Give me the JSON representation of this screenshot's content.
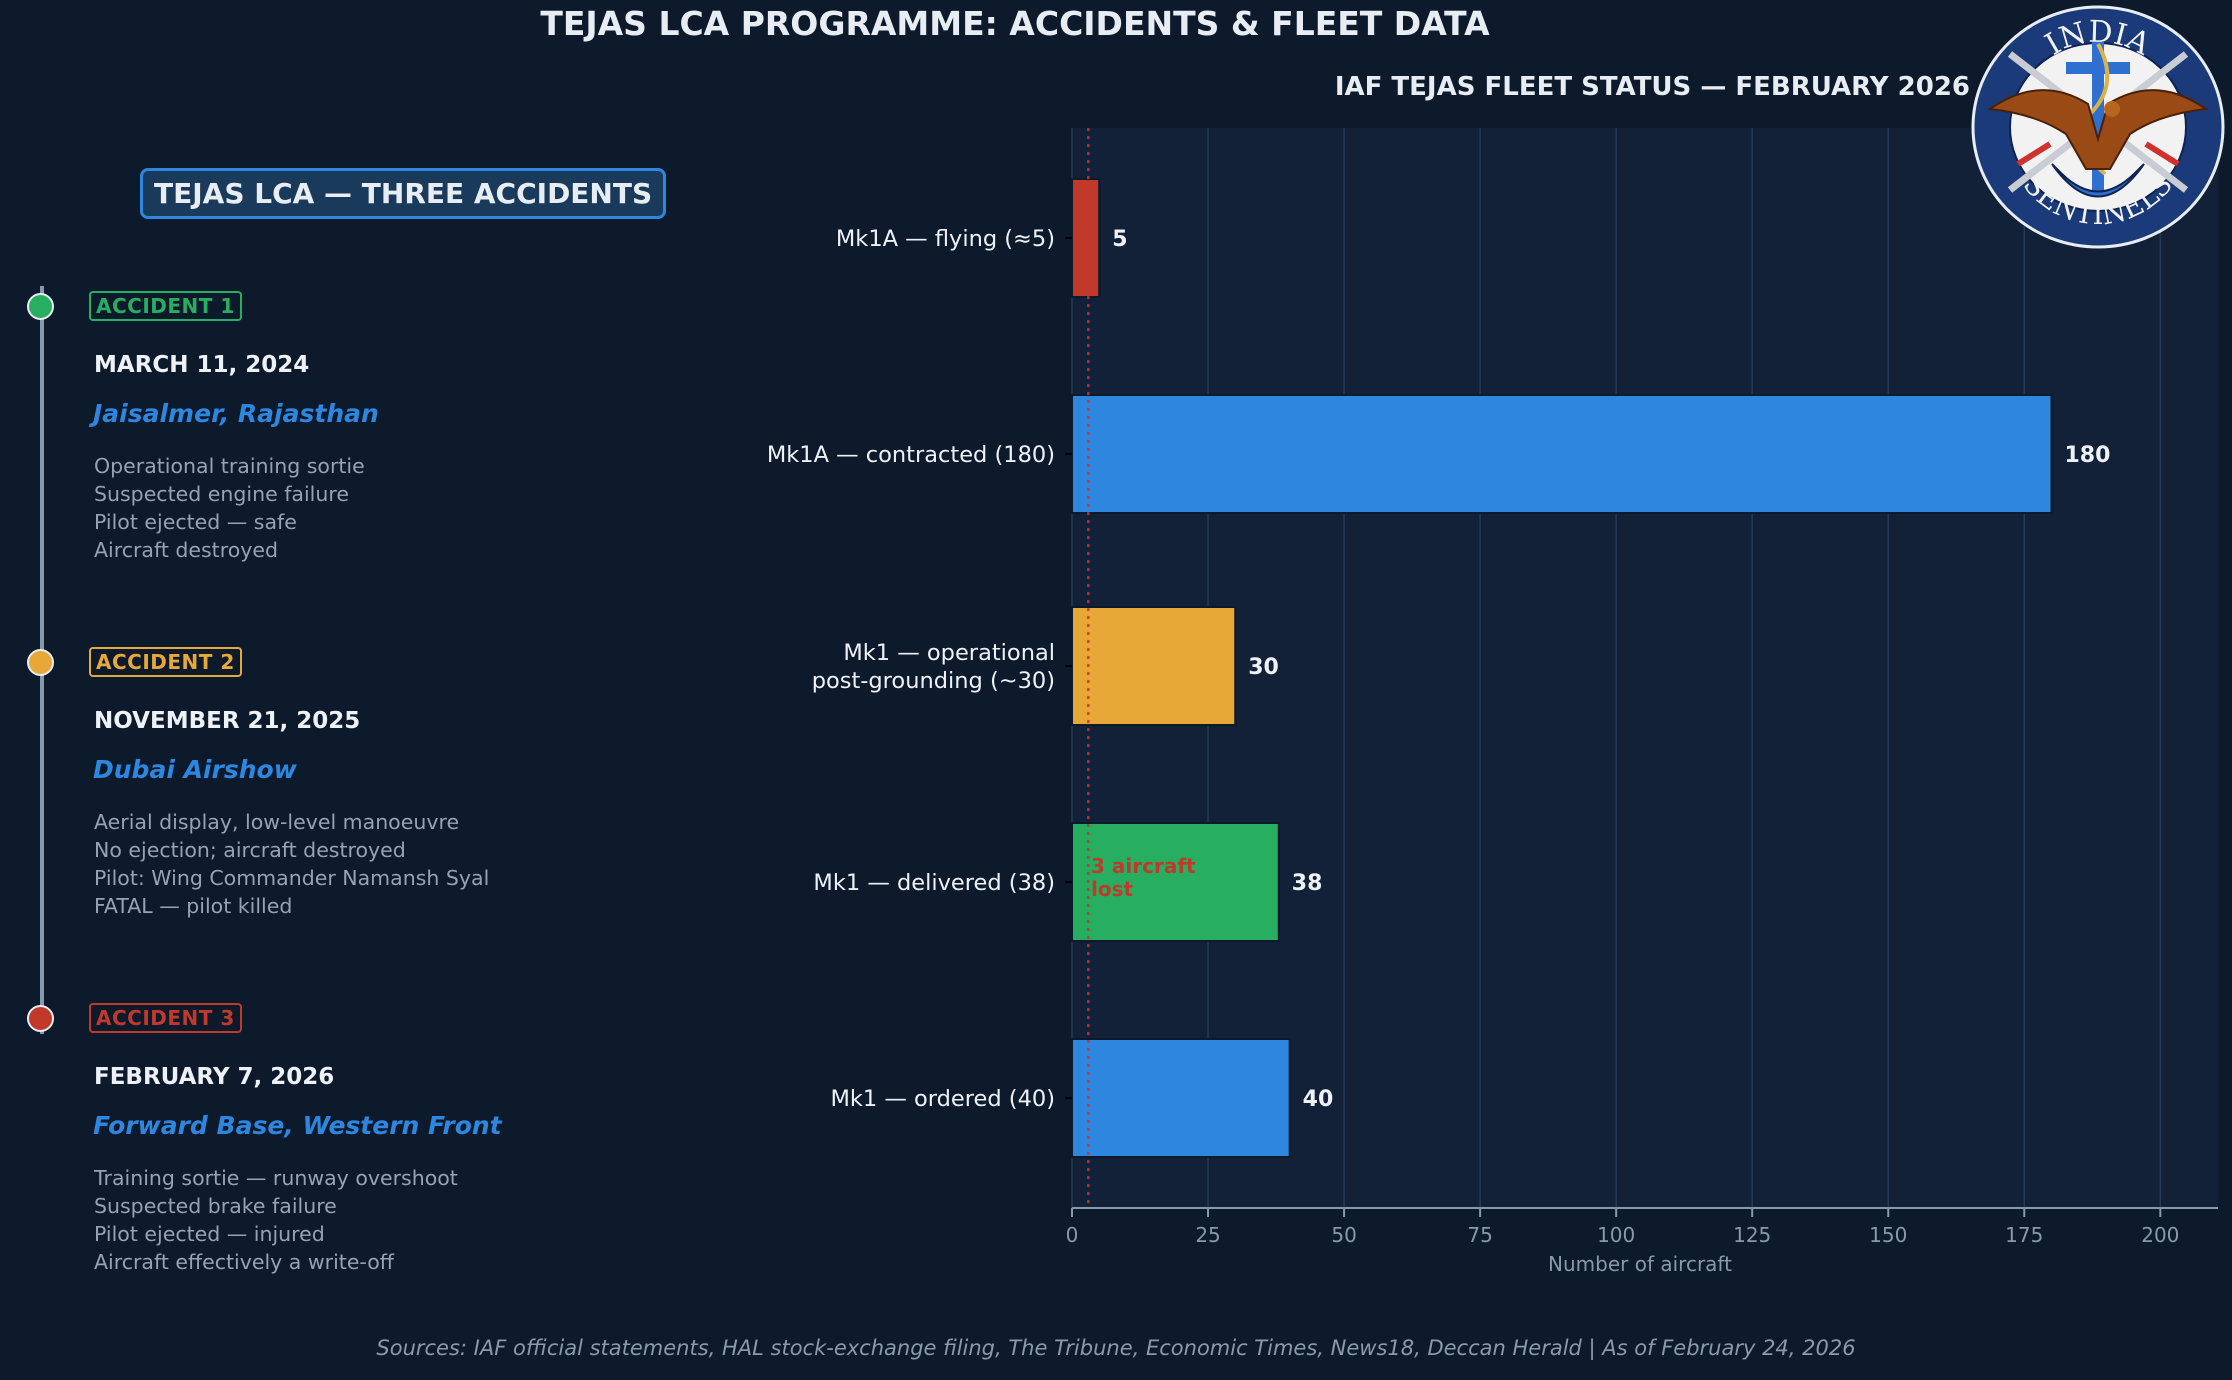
{
  "page": {
    "title": "TEJAS LCA PROGRAMME: ACCIDENTS & FLEET DATA",
    "footer": "Sources: IAF official statements, HAL stock-exchange filing, The Tribune, Economic Times, News18, Deccan Herald  |  As of February 24, 2026"
  },
  "timeline": {
    "title": "TEJAS LCA — THREE ACCIDENTS",
    "accidents": [
      {
        "badge": "ACCIDENT 1",
        "color": "#27ae60",
        "date": "MARCH 11, 2024",
        "location": "Jaisalmer, Rajasthan",
        "details": [
          "Operational training sortie",
          "Suspected engine failure",
          "Pilot ejected — safe",
          "Aircraft destroyed"
        ]
      },
      {
        "badge": "ACCIDENT 2",
        "color": "#e8a838",
        "date": "NOVEMBER 21, 2025",
        "location": "Dubai Airshow",
        "details": [
          "Aerial display, low-level manoeuvre",
          "No ejection; aircraft destroyed",
          "Pilot: Wing Commander Namansh Syal",
          "FATAL — pilot killed"
        ]
      },
      {
        "badge": "ACCIDENT 3",
        "color": "#c0392b",
        "date": "FEBRUARY 7, 2026",
        "location": "Forward Base, Western Front",
        "details": [
          "Training sortie — runway overshoot",
          "Suspected brake failure",
          "Pilot ejected — injured",
          "Aircraft effectively a write-off"
        ]
      }
    ]
  },
  "logo": {
    "top_text": "INDIA",
    "bottom_text": "SENTINELS"
  },
  "chart_data": {
    "type": "bar",
    "orientation": "horizontal",
    "title": "IAF TEJAS FLEET STATUS — FEBRUARY 2026",
    "xlabel": "Number of aircraft",
    "ylabel": "",
    "xlim": [
      0,
      210.6
    ],
    "xticks": [
      0,
      25,
      50,
      75,
      100,
      125,
      150,
      175,
      200
    ],
    "grid": true,
    "categories": [
      "Mk1A — flying (≈5)",
      "Mk1A — contracted (180)",
      "Mk1 — operational\npost-grounding (~30)",
      "Mk1 — delivered (38)",
      "Mk1 — ordered (40)"
    ],
    "values": [
      5,
      180,
      30,
      38,
      40
    ],
    "value_labels": [
      "5",
      "180",
      "30",
      "38",
      "40"
    ],
    "colors": [
      "#c0392b",
      "#2e86de",
      "#e8a838",
      "#27ae60",
      "#2e86de"
    ],
    "reference_line": {
      "x": 3,
      "style": "dotted",
      "color": "#c0392b"
    },
    "annotation": {
      "text": "3 aircraft\nlost",
      "x": 3.5,
      "category_index": 3,
      "color": "#c0392b"
    }
  }
}
